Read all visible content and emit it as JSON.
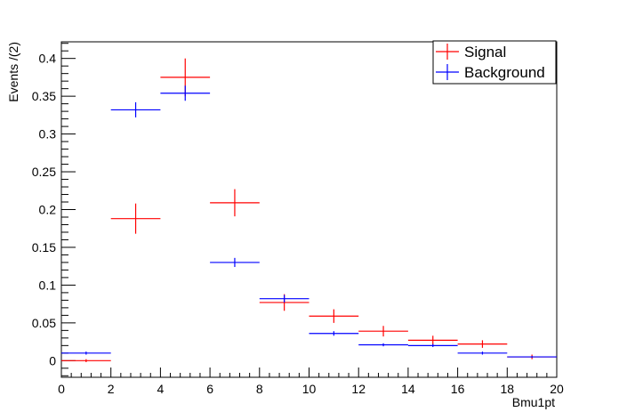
{
  "chart_data": {
    "type": "scatter",
    "xlabel": "Bmu1pt",
    "ylabel": "Events /(2)",
    "xlim": [
      0,
      20
    ],
    "ylim": [
      -0.022,
      0.422
    ],
    "x_ticks": [
      "0",
      "2",
      "4",
      "6",
      "8",
      "10",
      "12",
      "14",
      "16",
      "18",
      "20"
    ],
    "y_ticks": [
      "0",
      "0.05",
      "0.1",
      "0.15",
      "0.2",
      "0.25",
      "0.3",
      "0.35",
      "0.4"
    ],
    "legend_position": "top-right",
    "grid": false,
    "series": [
      {
        "name": "Signal",
        "color": "#ff0000",
        "points": [
          {
            "x": 1,
            "y": 0.0,
            "xerr": 1,
            "yerr": 0.002
          },
          {
            "x": 3,
            "y": 0.188,
            "xerr": 1,
            "yerr": 0.02
          },
          {
            "x": 5,
            "y": 0.375,
            "xerr": 1,
            "yerr": 0.025
          },
          {
            "x": 7,
            "y": 0.209,
            "xerr": 1,
            "yerr": 0.018
          },
          {
            "x": 9,
            "y": 0.077,
            "xerr": 1,
            "yerr": 0.011
          },
          {
            "x": 11,
            "y": 0.059,
            "xerr": 1,
            "yerr": 0.009
          },
          {
            "x": 13,
            "y": 0.039,
            "xerr": 1,
            "yerr": 0.007
          },
          {
            "x": 15,
            "y": 0.027,
            "xerr": 1,
            "yerr": 0.006
          },
          {
            "x": 17,
            "y": 0.022,
            "xerr": 1,
            "yerr": 0.005
          },
          {
            "x": 19,
            "y": 0.005,
            "xerr": 1,
            "yerr": 0.003
          }
        ]
      },
      {
        "name": "Background",
        "color": "#0000ff",
        "points": [
          {
            "x": 1,
            "y": 0.01,
            "xerr": 1,
            "yerr": 0.002
          },
          {
            "x": 3,
            "y": 0.332,
            "xerr": 1,
            "yerr": 0.01
          },
          {
            "x": 5,
            "y": 0.354,
            "xerr": 1,
            "yerr": 0.01
          },
          {
            "x": 7,
            "y": 0.13,
            "xerr": 1,
            "yerr": 0.006
          },
          {
            "x": 9,
            "y": 0.082,
            "xerr": 1,
            "yerr": 0.005
          },
          {
            "x": 11,
            "y": 0.036,
            "xerr": 1,
            "yerr": 0.003
          },
          {
            "x": 13,
            "y": 0.021,
            "xerr": 1,
            "yerr": 0.002
          },
          {
            "x": 15,
            "y": 0.02,
            "xerr": 1,
            "yerr": 0.002
          },
          {
            "x": 17,
            "y": 0.01,
            "xerr": 1,
            "yerr": 0.002
          },
          {
            "x": 19,
            "y": 0.005,
            "xerr": 1,
            "yerr": 0.001
          }
        ]
      }
    ]
  }
}
